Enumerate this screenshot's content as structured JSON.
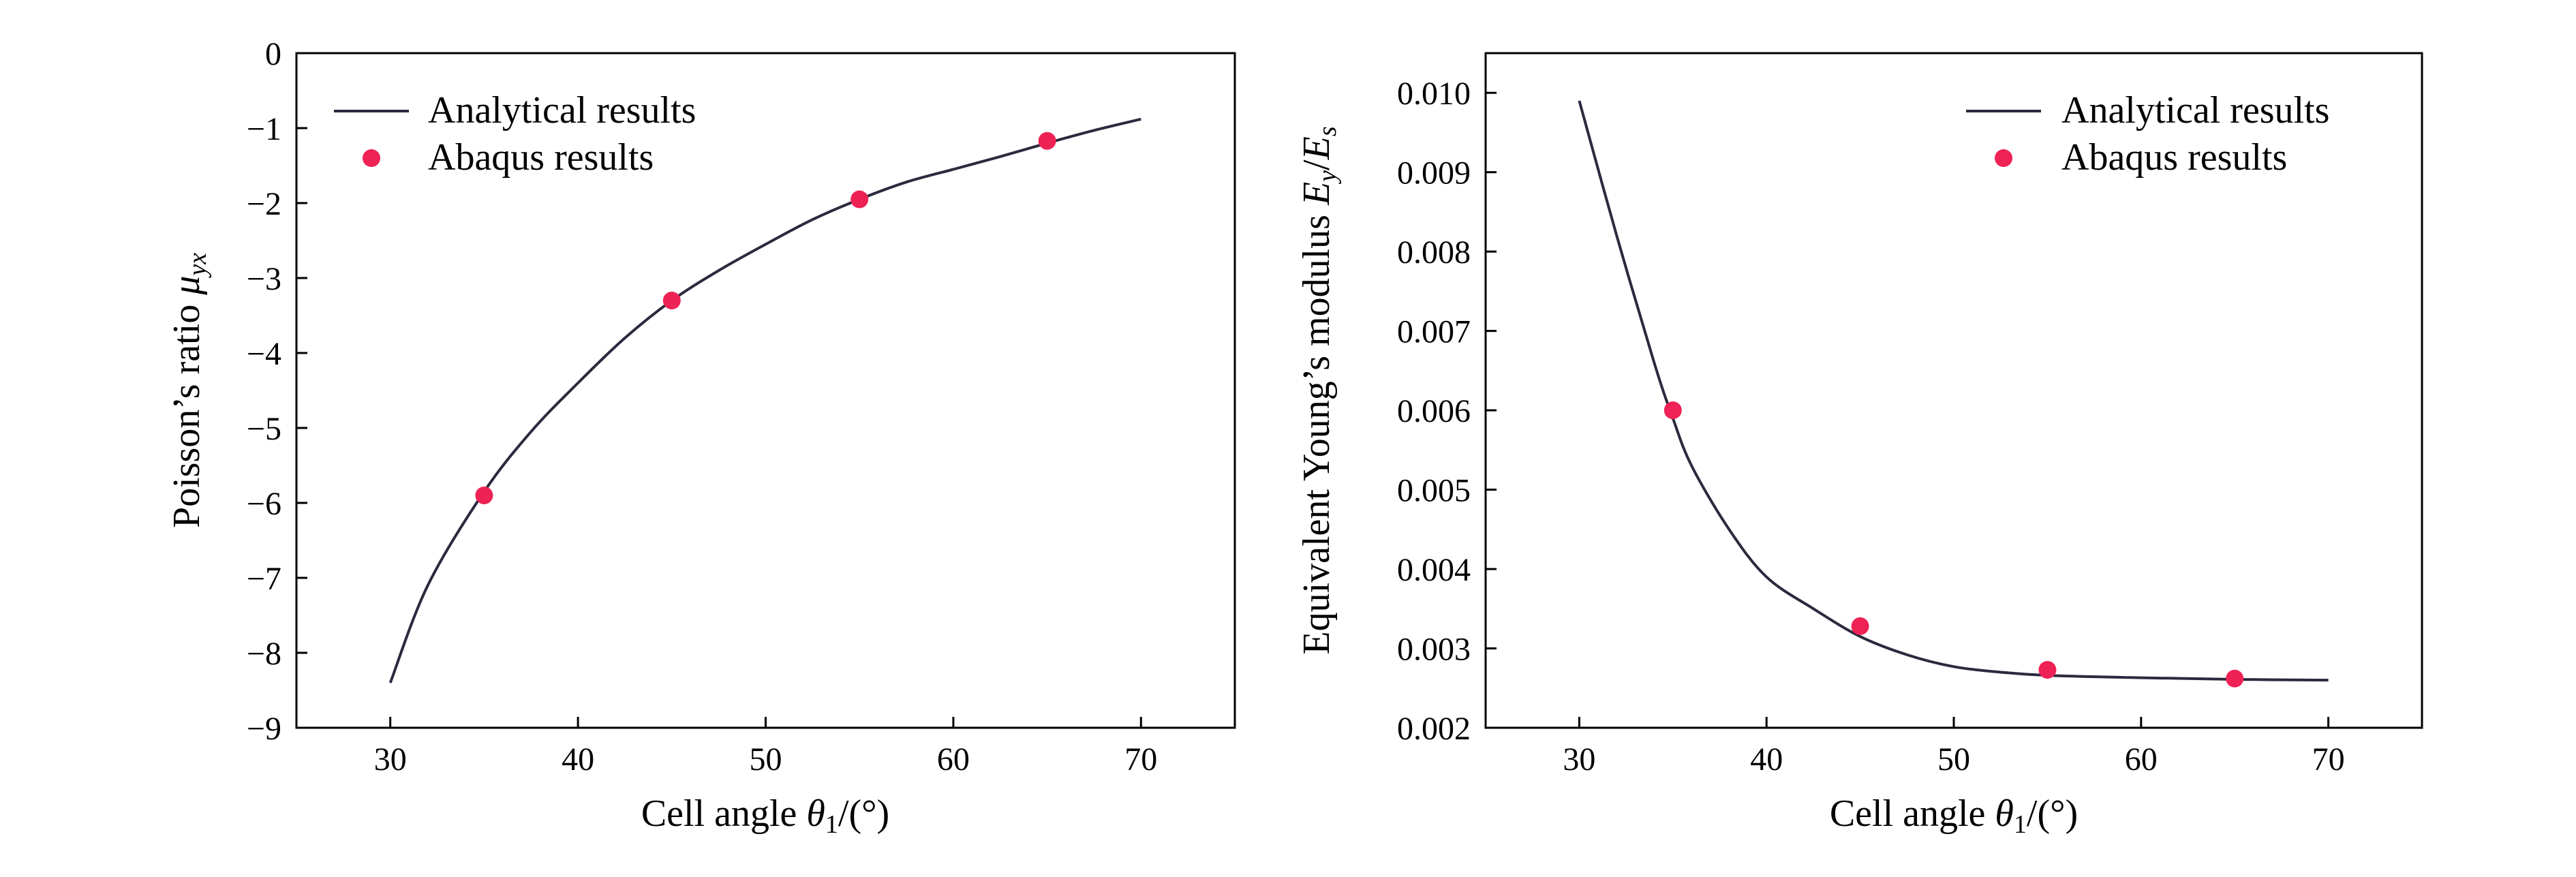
{
  "colors": {
    "analytical": "#2b2a3e",
    "abaqus": "#ee2255",
    "axis": "#000000"
  },
  "chart_data": [
    {
      "type": "line",
      "xlabel": {
        "prefix": "Cell angle ",
        "var": "θ",
        "sub": "1",
        "suffix": "/(°)"
      },
      "ylabel": {
        "prefix": "Poisson’s ratio ",
        "var": "μ",
        "sub": "yx"
      },
      "xlim": [
        25,
        75
      ],
      "ylim": [
        -9,
        0
      ],
      "xticks": [
        30,
        40,
        50,
        60,
        70
      ],
      "yticks": [
        0,
        -1,
        -2,
        -3,
        -4,
        -5,
        -6,
        -7,
        -8,
        -9
      ],
      "ytick_labels": [
        "0",
        "−1",
        "−2",
        "−3",
        "−4",
        "−5",
        "−6",
        "−7",
        "−8",
        "−9"
      ],
      "legend_position": "top-left",
      "series": [
        {
          "name": "Analytical results",
          "kind": "line",
          "x": [
            30,
            32,
            35,
            37.5,
            40,
            42.5,
            45,
            47.5,
            50,
            52.5,
            55,
            57.5,
            60,
            62.5,
            65,
            67.5,
            70
          ],
          "y": [
            -8.4,
            -7.1,
            -5.85,
            -5.05,
            -4.4,
            -3.8,
            -3.3,
            -2.9,
            -2.55,
            -2.22,
            -1.95,
            -1.72,
            -1.55,
            -1.38,
            -1.2,
            -1.03,
            -0.88
          ]
        },
        {
          "name": "Abaqus results",
          "kind": "scatter",
          "x": [
            35,
            45,
            55,
            65
          ],
          "y": [
            -5.9,
            -3.3,
            -1.95,
            -1.17
          ]
        }
      ]
    },
    {
      "type": "line",
      "xlabel": {
        "prefix": "Cell angle ",
        "var": "θ",
        "sub": "1",
        "suffix": "/(°)"
      },
      "ylabel": {
        "prefix": "Equivalent Young’s modulus ",
        "var": "E",
        "sub": "y",
        "mid": "/",
        "var2": "E",
        "sub2": "s"
      },
      "xlim": [
        25,
        75
      ],
      "ylim": [
        0.002,
        0.0105
      ],
      "xticks": [
        30,
        40,
        50,
        60,
        70
      ],
      "yticks": [
        0.002,
        0.003,
        0.004,
        0.005,
        0.006,
        0.007,
        0.008,
        0.009,
        0.01
      ],
      "ytick_labels": [
        "0.002",
        "0.003",
        "0.004",
        "0.005",
        "0.006",
        "0.007",
        "0.008",
        "0.009",
        "0.010"
      ],
      "legend_position": "top-right",
      "series": [
        {
          "name": "Analytical results",
          "kind": "line",
          "x": [
            30,
            32,
            34,
            35,
            36,
            38,
            40,
            42.5,
            45,
            47.5,
            50,
            52.5,
            55,
            60,
            65,
            70
          ],
          "y": [
            0.0099,
            0.0082,
            0.0066,
            0.0059,
            0.0053,
            0.0045,
            0.0039,
            0.0035,
            0.00315,
            0.00292,
            0.00277,
            0.0027,
            0.00266,
            0.00263,
            0.00261,
            0.0026
          ]
        },
        {
          "name": "Abaqus results",
          "kind": "scatter",
          "x": [
            35,
            45,
            55,
            65
          ],
          "y": [
            0.006,
            0.00328,
            0.00273,
            0.00262
          ]
        }
      ]
    }
  ]
}
